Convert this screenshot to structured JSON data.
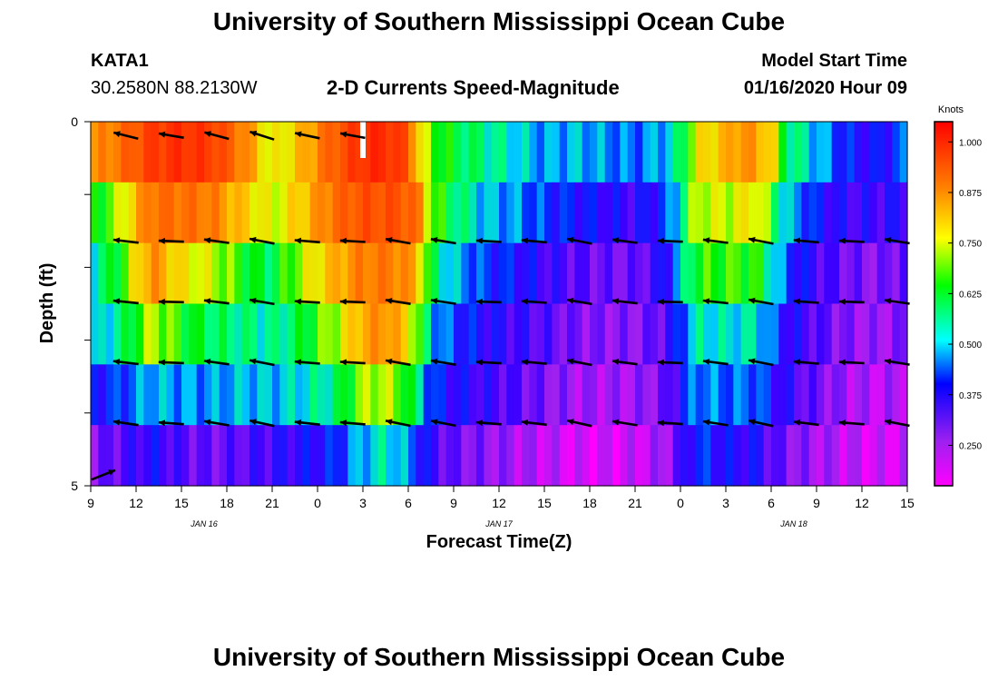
{
  "header": {
    "title": "University of Southern Mississippi Ocean Cube",
    "footer_title": "University of Southern Mississippi Ocean Cube",
    "station": "KATA1",
    "coords": "30.2580N 88.2130W",
    "subtitle": "2-D Currents Speed-Magnitude",
    "model_label": "Model Start Time",
    "model_time": "01/16/2020 Hour 09"
  },
  "chart_data": {
    "type": "heatmap",
    "title": "2-D Currents Speed-Magnitude",
    "xlabel": "Forecast Time(Z)",
    "ylabel": "Depth (ft)",
    "ylim": [
      0,
      5
    ],
    "y_tick_labels": [
      "0",
      "",
      "",
      "",
      "",
      "5"
    ],
    "x_tick_labels": [
      "9",
      "12",
      "15",
      "18",
      "21",
      "0",
      "3",
      "6",
      "9",
      "12",
      "15",
      "18",
      "21",
      "0",
      "3",
      "6",
      "9",
      "12",
      "15"
    ],
    "date_labels": [
      "JAN 16",
      "JAN 17",
      "JAN 18"
    ],
    "colorbar": {
      "unit": "Knots",
      "tick_labels": [
        "1.000",
        "0.875",
        "0.750",
        "0.625",
        "0.500",
        "0.375",
        "0.250"
      ],
      "tick_values": [
        1.0,
        0.875,
        0.75,
        0.625,
        0.5,
        0.375,
        0.25
      ],
      "range": [
        0.15,
        1.05
      ]
    },
    "depth_layers": 5,
    "hours_start": 9,
    "hours_span": 54,
    "layer_profiles": [
      [
        [
          0,
          0.75
        ],
        [
          2,
          0.82
        ],
        [
          4,
          0.92
        ],
        [
          6,
          0.95
        ],
        [
          8,
          0.92
        ],
        [
          10,
          0.8
        ],
        [
          12,
          0.62
        ],
        [
          14,
          0.72
        ],
        [
          16,
          0.85
        ],
        [
          18,
          0.95
        ],
        [
          19.5,
          0.96
        ],
        [
          21,
          0.88
        ],
        [
          22,
          0.6
        ],
        [
          24,
          0.52
        ],
        [
          26,
          0.48
        ],
        [
          28,
          0.44
        ],
        [
          30,
          0.4
        ],
        [
          32,
          0.42
        ],
        [
          34,
          0.4
        ],
        [
          36,
          0.38
        ],
        [
          38,
          0.42
        ],
        [
          39,
          0.48
        ],
        [
          40,
          0.65
        ],
        [
          42,
          0.72
        ],
        [
          43,
          0.78
        ],
        [
          45,
          0.7
        ],
        [
          46,
          0.5
        ],
        [
          48,
          0.42
        ],
        [
          50,
          0.34
        ],
        [
          52,
          0.32
        ],
        [
          54,
          0.38
        ]
      ],
      [
        [
          0,
          0.52
        ],
        [
          2,
          0.62
        ],
        [
          4,
          0.82
        ],
        [
          6,
          0.82
        ],
        [
          8,
          0.8
        ],
        [
          10,
          0.7
        ],
        [
          12,
          0.62
        ],
        [
          14,
          0.7
        ],
        [
          16,
          0.82
        ],
        [
          18,
          0.88
        ],
        [
          20,
          0.88
        ],
        [
          21.5,
          0.84
        ],
        [
          22.5,
          0.58
        ],
        [
          24,
          0.5
        ],
        [
          26,
          0.42
        ],
        [
          28,
          0.4
        ],
        [
          30,
          0.36
        ],
        [
          32,
          0.34
        ],
        [
          34,
          0.32
        ],
        [
          36,
          0.3
        ],
        [
          38,
          0.36
        ],
        [
          39,
          0.45
        ],
        [
          40,
          0.62
        ],
        [
          42,
          0.62
        ],
        [
          44,
          0.66
        ],
        [
          45,
          0.55
        ],
        [
          46,
          0.42
        ],
        [
          48,
          0.34
        ],
        [
          50,
          0.3
        ],
        [
          52,
          0.3
        ],
        [
          54,
          0.32
        ]
      ],
      [
        [
          0,
          0.45
        ],
        [
          2,
          0.55
        ],
        [
          4,
          0.78
        ],
        [
          6,
          0.66
        ],
        [
          8,
          0.62
        ],
        [
          10,
          0.55
        ],
        [
          12,
          0.5
        ],
        [
          14,
          0.62
        ],
        [
          16,
          0.72
        ],
        [
          18,
          0.8
        ],
        [
          20,
          0.8
        ],
        [
          21.5,
          0.74
        ],
        [
          22.5,
          0.5
        ],
        [
          24,
          0.42
        ],
        [
          26,
          0.36
        ],
        [
          28,
          0.34
        ],
        [
          30,
          0.3
        ],
        [
          32,
          0.28
        ],
        [
          34,
          0.26
        ],
        [
          36,
          0.26
        ],
        [
          38,
          0.32
        ],
        [
          39,
          0.42
        ],
        [
          40,
          0.55
        ],
        [
          42,
          0.56
        ],
        [
          44,
          0.56
        ],
        [
          45,
          0.46
        ],
        [
          46,
          0.36
        ],
        [
          48,
          0.3
        ],
        [
          50,
          0.26
        ],
        [
          52,
          0.24
        ],
        [
          54,
          0.28
        ]
      ],
      [
        [
          0,
          0.4
        ],
        [
          2,
          0.48
        ],
        [
          4,
          0.62
        ],
        [
          6,
          0.55
        ],
        [
          8,
          0.5
        ],
        [
          10,
          0.48
        ],
        [
          12,
          0.46
        ],
        [
          14,
          0.52
        ],
        [
          16,
          0.6
        ],
        [
          18,
          0.74
        ],
        [
          19.5,
          0.78
        ],
        [
          21,
          0.68
        ],
        [
          22.5,
          0.42
        ],
        [
          24,
          0.36
        ],
        [
          26,
          0.32
        ],
        [
          28,
          0.3
        ],
        [
          30,
          0.28
        ],
        [
          32,
          0.25
        ],
        [
          34,
          0.24
        ],
        [
          36,
          0.24
        ],
        [
          38,
          0.28
        ],
        [
          39,
          0.36
        ],
        [
          40,
          0.45
        ],
        [
          42,
          0.44
        ],
        [
          44,
          0.45
        ],
        [
          45,
          0.38
        ],
        [
          46,
          0.32
        ],
        [
          48,
          0.28
        ],
        [
          50,
          0.24
        ],
        [
          52,
          0.22
        ],
        [
          54,
          0.25
        ]
      ],
      [
        [
          0,
          0.34
        ],
        [
          2,
          0.36
        ],
        [
          4,
          0.42
        ],
        [
          6,
          0.4
        ],
        [
          8,
          0.4
        ],
        [
          10,
          0.42
        ],
        [
          12,
          0.42
        ],
        [
          14,
          0.44
        ],
        [
          16,
          0.48
        ],
        [
          18,
          0.6
        ],
        [
          19.5,
          0.62
        ],
        [
          21,
          0.55
        ],
        [
          22.5,
          0.36
        ],
        [
          24,
          0.32
        ],
        [
          26,
          0.3
        ],
        [
          28,
          0.28
        ],
        [
          30,
          0.25
        ],
        [
          32,
          0.22
        ],
        [
          34,
          0.22
        ],
        [
          36,
          0.22
        ],
        [
          38,
          0.26
        ],
        [
          39,
          0.32
        ],
        [
          40,
          0.4
        ],
        [
          42,
          0.38
        ],
        [
          44,
          0.38
        ],
        [
          45,
          0.34
        ],
        [
          46,
          0.3
        ],
        [
          48,
          0.26
        ],
        [
          50,
          0.22
        ],
        [
          52,
          0.2
        ],
        [
          54,
          0.22
        ]
      ],
      [
        [
          0,
          0.24
        ],
        [
          2,
          0.28
        ],
        [
          4,
          0.32
        ],
        [
          6,
          0.28
        ],
        [
          8,
          0.26
        ],
        [
          10,
          0.28
        ],
        [
          12,
          0.3
        ],
        [
          14,
          0.32
        ],
        [
          16,
          0.34
        ],
        [
          18,
          0.42
        ],
        [
          19.5,
          0.45
        ],
        [
          21,
          0.4
        ],
        [
          22.5,
          0.3
        ],
        [
          24,
          0.26
        ],
        [
          26,
          0.24
        ],
        [
          28,
          0.22
        ],
        [
          30,
          0.2
        ],
        [
          32,
          0.18
        ],
        [
          34,
          0.18
        ],
        [
          36,
          0.19
        ],
        [
          38,
          0.22
        ],
        [
          39,
          0.28
        ],
        [
          40,
          0.36
        ],
        [
          42,
          0.32
        ],
        [
          44,
          0.32
        ],
        [
          45,
          0.28
        ],
        [
          46,
          0.25
        ],
        [
          48,
          0.22
        ],
        [
          50,
          0.2
        ],
        [
          52,
          0.18
        ],
        [
          54,
          0.19
        ]
      ]
    ],
    "vectors": [
      {
        "row": 0,
        "cols": [
          1,
          3,
          5,
          7,
          9,
          11
        ],
        "dir": [
          -1,
          -0.25
        ]
      },
      {
        "row": 1,
        "cols": [
          1,
          3,
          5,
          7,
          9,
          11,
          13,
          15,
          17,
          19,
          21,
          23,
          25,
          27,
          29,
          31,
          33,
          35
        ],
        "dir": [
          -1,
          -0.12
        ]
      },
      {
        "row": 2,
        "cols": [
          1,
          3,
          5,
          7,
          9,
          11,
          13,
          15,
          17,
          19,
          21,
          23,
          25,
          27,
          29,
          31,
          33,
          35
        ],
        "dir": [
          -1,
          -0.1
        ]
      },
      {
        "row": 3,
        "cols": [
          1,
          3,
          5,
          7,
          9,
          11,
          13,
          15,
          17,
          19,
          21,
          23,
          25,
          27,
          29,
          31,
          33,
          35
        ],
        "dir": [
          -1,
          -0.12
        ]
      },
      {
        "row": 4,
        "cols": [
          1,
          3,
          5,
          7,
          9,
          11,
          13,
          15,
          17,
          19,
          21,
          23,
          25,
          27,
          29,
          31,
          33,
          35
        ],
        "dir": [
          -1,
          -0.15
        ]
      },
      {
        "row": 5,
        "cols": [
          0
        ],
        "dir": [
          1,
          -0.4
        ]
      }
    ]
  }
}
